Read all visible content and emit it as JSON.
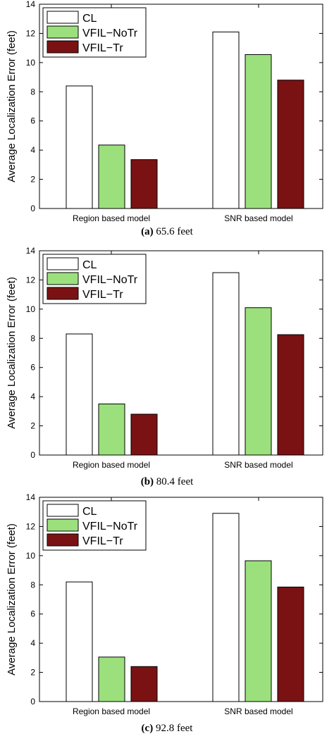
{
  "chart_data": [
    {
      "type": "bar",
      "caption_label": "(a)",
      "caption_text": "65.6 feet",
      "ylabel": "Average Localization Error (feet)",
      "xlabel": "",
      "ylim": [
        0,
        14
      ],
      "yticks": [
        0,
        2,
        4,
        6,
        8,
        10,
        12,
        14
      ],
      "categories": [
        "Region based model",
        "SNR based model"
      ],
      "series": [
        {
          "name": "CL",
          "values": [
            8.4,
            12.1
          ]
        },
        {
          "name": "VFIL−NoTr",
          "values": [
            4.35,
            10.55
          ]
        },
        {
          "name": "VFIL−Tr",
          "values": [
            3.35,
            8.8
          ]
        }
      ],
      "legend_position": "top-left",
      "grid": false
    },
    {
      "type": "bar",
      "caption_label": "(b)",
      "caption_text": "80.4 feet",
      "ylabel": "Average Localization Error (feet)",
      "xlabel": "",
      "ylim": [
        0,
        14
      ],
      "yticks": [
        0,
        2,
        4,
        6,
        8,
        10,
        12,
        14
      ],
      "categories": [
        "Region based model",
        "SNR based model"
      ],
      "series": [
        {
          "name": "CL",
          "values": [
            8.3,
            12.5
          ]
        },
        {
          "name": "VFIL−NoTr",
          "values": [
            3.5,
            10.1
          ]
        },
        {
          "name": "VFIL−Tr",
          "values": [
            2.8,
            8.25
          ]
        }
      ],
      "legend_position": "top-left",
      "grid": false
    },
    {
      "type": "bar",
      "caption_label": "(c)",
      "caption_text": "92.8 feet",
      "ylabel": "Average Localization Error (feet)",
      "xlabel": "",
      "ylim": [
        0,
        14
      ],
      "yticks": [
        0,
        2,
        4,
        6,
        8,
        10,
        12,
        14
      ],
      "categories": [
        "Region based model",
        "SNR based model"
      ],
      "series": [
        {
          "name": "CL",
          "values": [
            8.2,
            12.9
          ]
        },
        {
          "name": "VFIL−NoTr",
          "values": [
            3.05,
            9.65
          ]
        },
        {
          "name": "VFIL−Tr",
          "values": [
            2.4,
            7.85
          ]
        }
      ],
      "legend_position": "top-left",
      "grid": false
    }
  ],
  "colors": {
    "CL": "#ffffff",
    "VFIL−NoTr": "#9be07d",
    "VFIL−Tr": "#7a1214",
    "axis": "#000000"
  }
}
